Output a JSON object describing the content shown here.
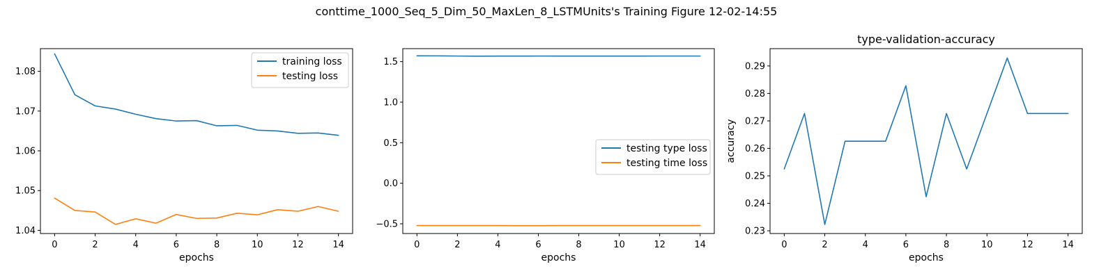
{
  "figure": {
    "suptitle": "conttime_1000_Seq_5_Dim_50_MaxLen_8_LSTMUnits's Training Figure 12-02-14:55"
  },
  "colors": {
    "blue": "#1f77b4",
    "orange": "#ff7f0e"
  },
  "chart_data": [
    {
      "type": "line",
      "title": "",
      "xlabel": "epochs",
      "ylabel": "",
      "xlim": [
        -0.7,
        14.7
      ],
      "ylim": [
        1.0392,
        1.0857
      ],
      "xticks": [
        0,
        2,
        4,
        6,
        8,
        10,
        12,
        14
      ],
      "yticks": [
        1.04,
        1.05,
        1.06,
        1.07,
        1.08
      ],
      "ytick_labels": [
        "1.04",
        "1.05",
        "1.06",
        "1.07",
        "1.08"
      ],
      "grid": false,
      "legend_position": "top-right",
      "x": [
        0,
        1,
        2,
        3,
        4,
        5,
        6,
        7,
        8,
        9,
        10,
        11,
        12,
        13,
        14
      ],
      "series": [
        {
          "name": "training loss",
          "color": "#1f77b4",
          "values": [
            1.0844,
            1.0741,
            1.0713,
            1.0705,
            1.0692,
            1.0681,
            1.0675,
            1.0676,
            1.0663,
            1.0664,
            1.0652,
            1.065,
            1.0644,
            1.0645,
            1.0639
          ]
        },
        {
          "name": "testing loss",
          "color": "#ff7f0e",
          "values": [
            1.0481,
            1.045,
            1.0446,
            1.0415,
            1.0429,
            1.0418,
            1.044,
            1.043,
            1.0431,
            1.0443,
            1.0439,
            1.0452,
            1.0448,
            1.046,
            1.0448
          ]
        }
      ]
    },
    {
      "type": "line",
      "title": "",
      "xlabel": "epochs",
      "ylabel": "",
      "xlim": [
        -0.7,
        14.7
      ],
      "ylim": [
        -0.62,
        1.66
      ],
      "xticks": [
        0,
        2,
        4,
        6,
        8,
        10,
        12,
        14
      ],
      "yticks": [
        -0.5,
        0.0,
        0.5,
        1.0,
        1.5
      ],
      "ytick_labels": [
        "−0.5",
        "0.0",
        "0.5",
        "1.0",
        "1.5"
      ],
      "grid": false,
      "legend_position": "center-right",
      "x": [
        0,
        1,
        2,
        3,
        4,
        5,
        6,
        7,
        8,
        9,
        10,
        11,
        12,
        13,
        14
      ],
      "series": [
        {
          "name": "testing type loss",
          "color": "#1f77b4",
          "values": [
            1.572,
            1.571,
            1.569,
            1.567,
            1.568,
            1.568,
            1.569,
            1.568,
            1.568,
            1.568,
            1.568,
            1.568,
            1.569,
            1.569,
            1.569
          ]
        },
        {
          "name": "testing time loss",
          "color": "#ff7f0e",
          "values": [
            -0.522,
            -0.522,
            -0.522,
            -0.522,
            -0.522,
            -0.523,
            -0.523,
            -0.522,
            -0.522,
            -0.522,
            -0.522,
            -0.522,
            -0.522,
            -0.522,
            -0.522
          ]
        }
      ]
    },
    {
      "type": "line",
      "title": "type-validation-accuracy",
      "xlabel": "epochs",
      "ylabel": "accuracy",
      "xlim": [
        -0.7,
        14.7
      ],
      "ylim": [
        0.229,
        0.2963
      ],
      "xticks": [
        0,
        2,
        4,
        6,
        8,
        10,
        12,
        14
      ],
      "yticks": [
        0.23,
        0.24,
        0.25,
        0.26,
        0.27,
        0.28,
        0.29
      ],
      "ytick_labels": [
        "0.23",
        "0.24",
        "0.25",
        "0.26",
        "0.27",
        "0.28",
        "0.29"
      ],
      "grid": false,
      "legend_position": "",
      "x": [
        0,
        1,
        2,
        3,
        4,
        5,
        6,
        7,
        8,
        9,
        10,
        11,
        12,
        13,
        14
      ],
      "series": [
        {
          "name": "",
          "color": "#1f77b4",
          "values": [
            0.2525,
            0.2727,
            0.2323,
            0.2626,
            0.2626,
            0.2626,
            0.2828,
            0.2424,
            0.2727,
            0.2525,
            0.2727,
            0.2929,
            0.2727,
            0.2727,
            0.2727
          ]
        }
      ]
    }
  ]
}
